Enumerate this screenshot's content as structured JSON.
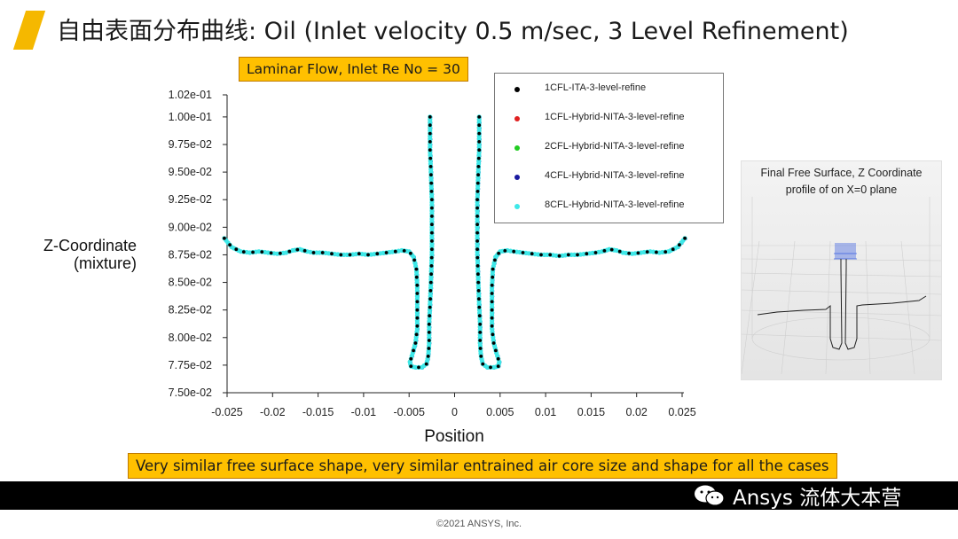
{
  "slide": {
    "title": "自由表面分布曲线: Oil (Inlet velocity 0.5 m/sec, 3 Level Refinement)",
    "callout_top": "Laminar Flow, Inlet Re No = 30",
    "callout_bottom": "Very similar free surface shape, very similar entrained air core size and shape for all the cases",
    "inset_caption_line1": "Final Free Surface,  Z Coordinate",
    "inset_caption_line2": "profile of on X=0 plane",
    "watermark": "Ansys 流体大本营",
    "copyright": "©2021 ANSYS, Inc.",
    "accent_color": "#f5b800",
    "callout_color": "#ffc000",
    "icons": {
      "accent": "slash-accent",
      "watermark": "wechat-icon"
    }
  },
  "chart_data": {
    "type": "scatter",
    "title": "",
    "xlabel": "Position",
    "ylabel_line1": "Z-Coordinate",
    "ylabel_line2": "(mixture)",
    "xlim": [
      -0.025,
      0.025
    ],
    "ylim": [
      0.075,
      0.102
    ],
    "xticks": [
      -0.025,
      -0.02,
      -0.015,
      -0.01,
      -0.005,
      0,
      0.005,
      0.01,
      0.015,
      0.02,
      0.025
    ],
    "xtick_labels": [
      "-0.025",
      "-0.02",
      "-0.015",
      "-0.01",
      "-0.005",
      "0",
      "0.005",
      "0.01",
      "0.015",
      "0.02",
      "0.025"
    ],
    "yticks": [
      0.075,
      0.0775,
      0.08,
      0.0825,
      0.085,
      0.0875,
      0.09,
      0.0925,
      0.095,
      0.0975,
      0.1,
      0.102
    ],
    "ytick_labels": [
      "7.50e-02",
      "7.75e-02",
      "8.00e-02",
      "8.25e-02",
      "8.50e-02",
      "8.75e-02",
      "9.00e-02",
      "9.25e-02",
      "9.50e-02",
      "9.75e-02",
      "1.00e-01",
      "1.02e-01"
    ],
    "grid": false,
    "legend_position": "top-right",
    "series": [
      {
        "name": "1CFL-ITA-3-level-refine",
        "color": "#000000"
      },
      {
        "name": "1CFL-Hybrid-NITA-3-level-refine",
        "color": "#e02020"
      },
      {
        "name": "2CFL-Hybrid-NITA-3-level-refine",
        "color": "#22cc22"
      },
      {
        "name": "4CFL-Hybrid-NITA-3-level-refine",
        "color": "#1a1aa0"
      },
      {
        "name": "8CFL-Hybrid-NITA-3-level-refine",
        "color": "#3ee8e8"
      }
    ],
    "profile": {
      "left": [
        [
          -0.0253,
          0.089
        ],
        [
          -0.0245,
          0.0882
        ],
        [
          -0.0235,
          0.0878
        ],
        [
          -0.0225,
          0.0877
        ],
        [
          -0.0215,
          0.0878
        ],
        [
          -0.0205,
          0.0877
        ],
        [
          -0.0195,
          0.0876
        ],
        [
          -0.0185,
          0.0877
        ],
        [
          -0.0178,
          0.0879
        ],
        [
          -0.017,
          0.088
        ],
        [
          -0.0162,
          0.0878
        ],
        [
          -0.0155,
          0.0877
        ],
        [
          -0.0145,
          0.0877
        ],
        [
          -0.0135,
          0.0876
        ],
        [
          -0.0125,
          0.0875
        ],
        [
          -0.0115,
          0.0875
        ],
        [
          -0.0105,
          0.0876
        ],
        [
          -0.0095,
          0.0875
        ],
        [
          -0.0085,
          0.0876
        ],
        [
          -0.0075,
          0.0877
        ],
        [
          -0.0065,
          0.0878
        ],
        [
          -0.0058,
          0.0879
        ],
        [
          -0.005,
          0.0878
        ],
        [
          -0.0045,
          0.0873
        ],
        [
          -0.0042,
          0.0862
        ],
        [
          -0.0041,
          0.0845
        ],
        [
          -0.0041,
          0.0825
        ],
        [
          -0.0041,
          0.0808
        ],
        [
          -0.0043,
          0.0795
        ],
        [
          -0.0046,
          0.0786
        ],
        [
          -0.0049,
          0.0778
        ],
        [
          -0.0048,
          0.0774
        ],
        [
          -0.0043,
          0.0773
        ],
        [
          -0.0036,
          0.0773
        ],
        [
          -0.0031,
          0.0776
        ],
        [
          -0.0029,
          0.0783
        ],
        [
          -0.0028,
          0.0795
        ],
        [
          -0.0028,
          0.0812
        ],
        [
          -0.0027,
          0.083
        ],
        [
          -0.0026,
          0.085
        ],
        [
          -0.0025,
          0.0875
        ],
        [
          -0.0025,
          0.09
        ],
        [
          -0.0025,
          0.0925
        ],
        [
          -0.0026,
          0.095
        ],
        [
          -0.0027,
          0.097
        ],
        [
          -0.0027,
          0.0985
        ],
        [
          -0.0027,
          0.1
        ]
      ],
      "right": [
        [
          0.0253,
          0.089
        ],
        [
          0.0245,
          0.0882
        ],
        [
          0.0235,
          0.0878
        ],
        [
          0.0225,
          0.0877
        ],
        [
          0.0215,
          0.0878
        ],
        [
          0.0205,
          0.0877
        ],
        [
          0.0195,
          0.0876
        ],
        [
          0.0185,
          0.0877
        ],
        [
          0.0178,
          0.0879
        ],
        [
          0.017,
          0.088
        ],
        [
          0.0162,
          0.0878
        ],
        [
          0.0155,
          0.0877
        ],
        [
          0.0145,
          0.0876
        ],
        [
          0.0135,
          0.0875
        ],
        [
          0.0125,
          0.0875
        ],
        [
          0.0115,
          0.0874
        ],
        [
          0.0105,
          0.0875
        ],
        [
          0.0095,
          0.0875
        ],
        [
          0.0085,
          0.0876
        ],
        [
          0.0075,
          0.0877
        ],
        [
          0.0065,
          0.0878
        ],
        [
          0.0058,
          0.0879
        ],
        [
          0.005,
          0.0878
        ],
        [
          0.0045,
          0.0873
        ],
        [
          0.0042,
          0.0862
        ],
        [
          0.0041,
          0.0845
        ],
        [
          0.0041,
          0.0825
        ],
        [
          0.0041,
          0.0808
        ],
        [
          0.0043,
          0.0795
        ],
        [
          0.0046,
          0.0786
        ],
        [
          0.0049,
          0.0778
        ],
        [
          0.0048,
          0.0774
        ],
        [
          0.0043,
          0.0773
        ],
        [
          0.0036,
          0.0773
        ],
        [
          0.0031,
          0.0776
        ],
        [
          0.0029,
          0.0783
        ],
        [
          0.0028,
          0.0795
        ],
        [
          0.0028,
          0.0812
        ],
        [
          0.0027,
          0.083
        ],
        [
          0.0026,
          0.085
        ],
        [
          0.0025,
          0.0875
        ],
        [
          0.0025,
          0.09
        ],
        [
          0.0025,
          0.0925
        ],
        [
          0.0026,
          0.095
        ],
        [
          0.0027,
          0.097
        ],
        [
          0.0027,
          0.0985
        ],
        [
          0.0027,
          0.1
        ]
      ]
    }
  }
}
